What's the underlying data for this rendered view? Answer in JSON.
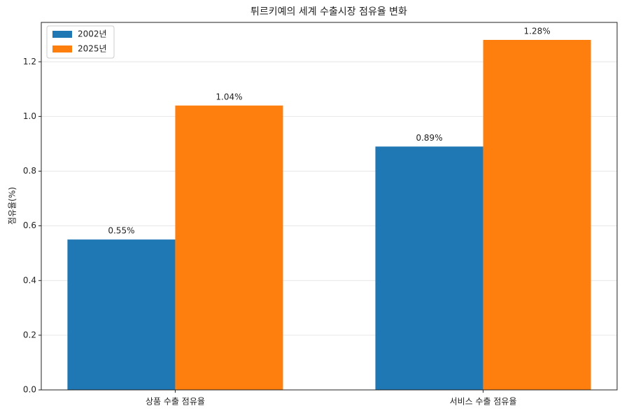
{
  "chart_data": {
    "type": "bar",
    "title": "튀르키예의 세계 수출시장 점유율 변화",
    "y_label": "점유율(%)",
    "categories": [
      "상품 수출 점유율",
      "서비스 수출 점유율"
    ],
    "series": [
      {
        "name": "2002년",
        "color": "#1f77b4",
        "values": [
          0.55,
          0.89
        ],
        "value_labels": [
          "0.55%",
          "0.89%"
        ]
      },
      {
        "name": "2025년",
        "color": "#ff7f0e",
        "values": [
          1.04,
          1.28
        ],
        "value_labels": [
          "1.04%",
          "1.28%"
        ]
      }
    ],
    "ylim": [
      0,
      1.344
    ],
    "yticks": [
      {
        "value": 0,
        "label": "0.0"
      },
      0.2,
      0.4,
      0.6,
      0.8,
      {
        "value": 1,
        "label": "1.0"
      },
      1.2
    ],
    "grid": true,
    "legend": "upper-left"
  }
}
